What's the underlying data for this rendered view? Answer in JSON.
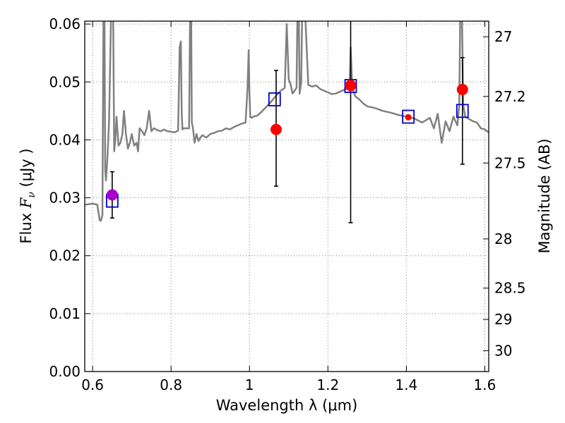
{
  "chart_data": {
    "type": "scatter",
    "xlabel": "Wavelength  λ (μm)",
    "ylabel_prefix": "Flux  ",
    "ylabel_symbol": "F",
    "ylabel_subscript": "ν",
    "ylabel_units": "  (μJy )",
    "y2label": "Magnitude (AB)",
    "xlim": [
      0.58,
      1.61
    ],
    "ylim": [
      0.0,
      0.0605
    ],
    "grid": true,
    "x_ticks": [
      0.6,
      0.8,
      1.0,
      1.2,
      1.4,
      1.6
    ],
    "x_tick_labels": [
      "0.6",
      "0.8",
      "1",
      "1.2",
      "1.4",
      "1.6"
    ],
    "y_ticks": [
      0.0,
      0.01,
      0.02,
      0.03,
      0.04,
      0.05,
      0.06
    ],
    "y_tick_labels": [
      "0.00",
      "0.01",
      "0.02",
      "0.03",
      "0.04",
      "0.05",
      "0.06"
    ],
    "y2_ticks": [
      {
        "flux": 0.0578,
        "label": "27"
      },
      {
        "flux": 0.0475,
        "label": "27.2"
      },
      {
        "flux": 0.036,
        "label": "27.5"
      },
      {
        "flux": 0.0229,
        "label": "28"
      },
      {
        "flux": 0.0144,
        "label": "28.5"
      },
      {
        "flux": 0.009,
        "label": "29"
      },
      {
        "flux": 0.0036,
        "label": "30"
      }
    ],
    "colors": {
      "model": "#808080",
      "observed": "#ff0000",
      "model_photometry": "#0000cc",
      "purple_point": "#aa00cc",
      "errorbar": "#000000",
      "grid": "#808080"
    },
    "model_spectrum": {
      "name": "model SED",
      "x": [
        0.58,
        0.6,
        0.612,
        0.618,
        0.621,
        0.625,
        0.628,
        0.63,
        0.632,
        0.634,
        0.637,
        0.642,
        0.648,
        0.652,
        0.655,
        0.658,
        0.661,
        0.666,
        0.671,
        0.676,
        0.68,
        0.685,
        0.69,
        0.695,
        0.7,
        0.706,
        0.712,
        0.716,
        0.72,
        0.726,
        0.732,
        0.738,
        0.744,
        0.75,
        0.756,
        0.762,
        0.768,
        0.775,
        0.782,
        0.79,
        0.8,
        0.81,
        0.818,
        0.822,
        0.825,
        0.827,
        0.829,
        0.832,
        0.836,
        0.84,
        0.846,
        0.849,
        0.851,
        0.853,
        0.856,
        0.86,
        0.865,
        0.87,
        0.875,
        0.88,
        0.89,
        0.9,
        0.91,
        0.92,
        0.93,
        0.94,
        0.95,
        0.96,
        0.97,
        0.98,
        0.99,
        0.995,
        0.998,
        1.0,
        1.002,
        1.005,
        1.01,
        1.02,
        1.03,
        1.04,
        1.05,
        1.06,
        1.07,
        1.08,
        1.09,
        1.095,
        1.1,
        1.105,
        1.11,
        1.12,
        1.123,
        1.125,
        1.128,
        1.132,
        1.135,
        1.14,
        1.15,
        1.16,
        1.17,
        1.18,
        1.19,
        1.2,
        1.21,
        1.22,
        1.23,
        1.24,
        1.25,
        1.255,
        1.258,
        1.262,
        1.27,
        1.28,
        1.29,
        1.3,
        1.32,
        1.34,
        1.36,
        1.38,
        1.4,
        1.42,
        1.44,
        1.46,
        1.47,
        1.48,
        1.49,
        1.5,
        1.51,
        1.52,
        1.53,
        1.535,
        1.538,
        1.541,
        1.545,
        1.55,
        1.56,
        1.57,
        1.58,
        1.59,
        1.6,
        1.61
      ],
      "flux": [
        0.0288,
        0.029,
        0.0288,
        0.0262,
        0.026,
        0.027,
        0.065,
        0.065,
        0.035,
        0.033,
        0.036,
        0.043,
        0.065,
        0.065,
        0.038,
        0.04,
        0.044,
        0.039,
        0.0395,
        0.041,
        0.045,
        0.041,
        0.0385,
        0.0395,
        0.041,
        0.039,
        0.0395,
        0.038,
        0.042,
        0.0415,
        0.0408,
        0.042,
        0.045,
        0.0415,
        0.042,
        0.0418,
        0.0416,
        0.0415,
        0.0418,
        0.0415,
        0.0414,
        0.0413,
        0.0416,
        0.056,
        0.057,
        0.045,
        0.0418,
        0.042,
        0.042,
        0.042,
        0.042,
        0.065,
        0.065,
        0.043,
        0.042,
        0.0395,
        0.041,
        0.0398,
        0.0404,
        0.0408,
        0.0404,
        0.041,
        0.0412,
        0.0415,
        0.0416,
        0.042,
        0.0418,
        0.0422,
        0.0425,
        0.0428,
        0.043,
        0.049,
        0.0555,
        0.048,
        0.044,
        0.0438,
        0.044,
        0.0442,
        0.0448,
        0.0455,
        0.0462,
        0.047,
        0.0478,
        0.0485,
        0.049,
        0.06,
        0.0505,
        0.0495,
        0.048,
        0.049,
        0.065,
        0.065,
        0.048,
        0.05,
        0.065,
        0.065,
        0.0495,
        0.0492,
        0.0494,
        0.0488,
        0.0485,
        0.0482,
        0.0479,
        0.048,
        0.0483,
        0.0486,
        0.049,
        0.0485,
        0.056,
        0.049,
        0.0475,
        0.047,
        0.0463,
        0.0458,
        0.0455,
        0.045,
        0.0447,
        0.0443,
        0.044,
        0.0437,
        0.043,
        0.0438,
        0.042,
        0.0445,
        0.0395,
        0.0432,
        0.0415,
        0.044,
        0.0425,
        0.046,
        0.065,
        0.065,
        0.046,
        0.044,
        0.0436,
        0.0432,
        0.043,
        0.042,
        0.0418,
        0.0413
      ]
    },
    "series": [
      {
        "name": "observed photometry",
        "marker": "circle",
        "x": [
          1.068,
          1.258,
          1.405,
          1.543
        ],
        "y": [
          0.0418,
          0.0494,
          0.0439,
          0.0487
        ]
      },
      {
        "name": "model photometry",
        "marker": "open-square",
        "x": [
          0.65,
          1.064,
          1.258,
          1.405,
          1.543
        ],
        "y": [
          0.0295,
          0.047,
          0.0493,
          0.044,
          0.045
        ]
      },
      {
        "name": "purple observed point",
        "marker": "circle",
        "x": [
          0.65
        ],
        "y": [
          0.0305
        ]
      }
    ],
    "error_bars": [
      {
        "x": 0.65,
        "y_low": 0.0265,
        "y_high": 0.0345
      },
      {
        "x": 1.068,
        "y_low": 0.032,
        "y_high": 0.052
      },
      {
        "x": 1.258,
        "y_low": 0.0257,
        "y_high": 0.065
      },
      {
        "x": 1.543,
        "y_low": 0.0358,
        "y_high": 0.0542
      }
    ]
  }
}
